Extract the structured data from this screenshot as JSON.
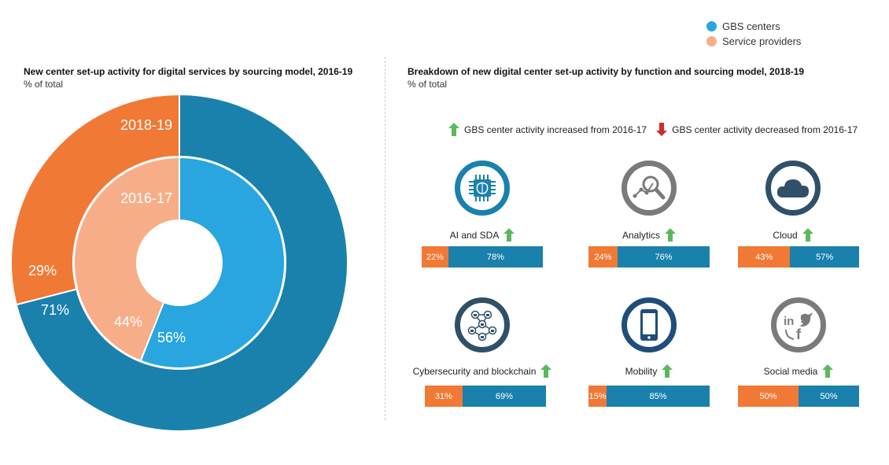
{
  "colors": {
    "gbs_outer": "#1a81ad",
    "gbs_inner": "#29a6df",
    "sp_outer": "#f07935",
    "sp_inner": "#f7ad87",
    "arrow_up": "#5cb85c",
    "arrow_down": "#c9302c",
    "icon_teal": "#1a81ad",
    "icon_grey": "#7a7a7a",
    "icon_navy": "#1e4e79",
    "icon_slate": "#2f5068"
  },
  "legend": [
    {
      "label": "GBS centers",
      "color": "#29a6df"
    },
    {
      "label": "Service providers",
      "color": "#f7ad87"
    }
  ],
  "left_panel": {
    "title": "New center set-up activity for digital services by sourcing model, 2016-19",
    "subtitle": "% of total",
    "outer_ring_label": "2018-19",
    "inner_ring_label": "2016-17"
  },
  "right_panel": {
    "title": "Breakdown of new digital center set-up activity by function and sourcing model, 2018-19",
    "subtitle": "% of total",
    "arrow_legend_up": "GBS center activity increased from 2016-17",
    "arrow_legend_down": "GBS center activity decreased from 2016-17"
  },
  "tiles": [
    {
      "label": "AI and SDA",
      "icon": "brain-chip-icon",
      "sp_label": "22%",
      "gbs_label": "78%",
      "trend": "up"
    },
    {
      "label": "Analytics",
      "icon": "magnifier-analytics-icon",
      "sp_label": "24%",
      "gbs_label": "76%",
      "trend": "up"
    },
    {
      "label": "Cloud",
      "icon": "cloud-icon",
      "sp_label": "43%",
      "gbs_label": "57%",
      "trend": "up"
    },
    {
      "label": "Cybersecurity and blockchain",
      "icon": "lock-network-icon",
      "sp_label": "31%",
      "gbs_label": "69%",
      "trend": "up"
    },
    {
      "label": "Mobility",
      "icon": "mobile-phone-icon",
      "sp_label": "15%",
      "gbs_label": "85%",
      "trend": "up"
    },
    {
      "label": "Social media",
      "icon": "social-media-icon",
      "sp_label": "50%",
      "gbs_label": "50%",
      "trend": "up"
    }
  ],
  "chart_data": [
    {
      "type": "pie",
      "title": "New center set-up activity for digital services by sourcing model, 2016-19",
      "subtitle": "% of total",
      "rings": [
        {
          "name": "2018-19",
          "categories": [
            "GBS centers",
            "Service providers"
          ],
          "values": [
            71,
            29
          ],
          "labels": [
            "71%",
            "29%"
          ]
        },
        {
          "name": "2016-17",
          "categories": [
            "GBS centers",
            "Service providers"
          ],
          "values": [
            56,
            44
          ],
          "labels": [
            "56%",
            "44%"
          ]
        }
      ]
    },
    {
      "type": "bar",
      "stacked": true,
      "orientation": "horizontal",
      "title": "Breakdown of new digital center set-up activity by function and sourcing model, 2018-19",
      "subtitle": "% of total",
      "categories": [
        "AI and SDA",
        "Analytics",
        "Cloud",
        "Cybersecurity and blockchain",
        "Mobility",
        "Social media"
      ],
      "series": [
        {
          "name": "Service providers",
          "values": [
            22,
            24,
            43,
            31,
            15,
            50
          ]
        },
        {
          "name": "GBS centers",
          "values": [
            78,
            76,
            57,
            69,
            85,
            50
          ]
        }
      ]
    }
  ]
}
